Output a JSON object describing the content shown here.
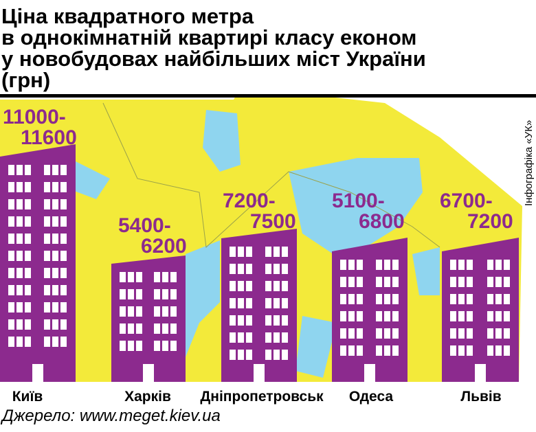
{
  "header": {
    "title_lines": [
      "Ціна квадратного метра",
      "в однокімнатній квартирі класу економ",
      "у новобудовах найбільших міст України",
      "(грн)"
    ]
  },
  "cities": [
    {
      "name": "Київ",
      "price_lines": [
        "11000-",
        "11600"
      ]
    },
    {
      "name": "Харків",
      "price_lines": [
        "5400-",
        "6200"
      ]
    },
    {
      "name": "Дніпропетровськ",
      "price_lines": [
        "7200-",
        "7500"
      ]
    },
    {
      "name": "Одеса",
      "price_lines": [
        "5100-",
        "6800"
      ]
    },
    {
      "name": "Львів",
      "price_lines": [
        "6700-",
        "7200"
      ]
    }
  ],
  "credit": "Інфографіка «УК»",
  "source": "Джерело: www.meget.kiev.ua"
}
